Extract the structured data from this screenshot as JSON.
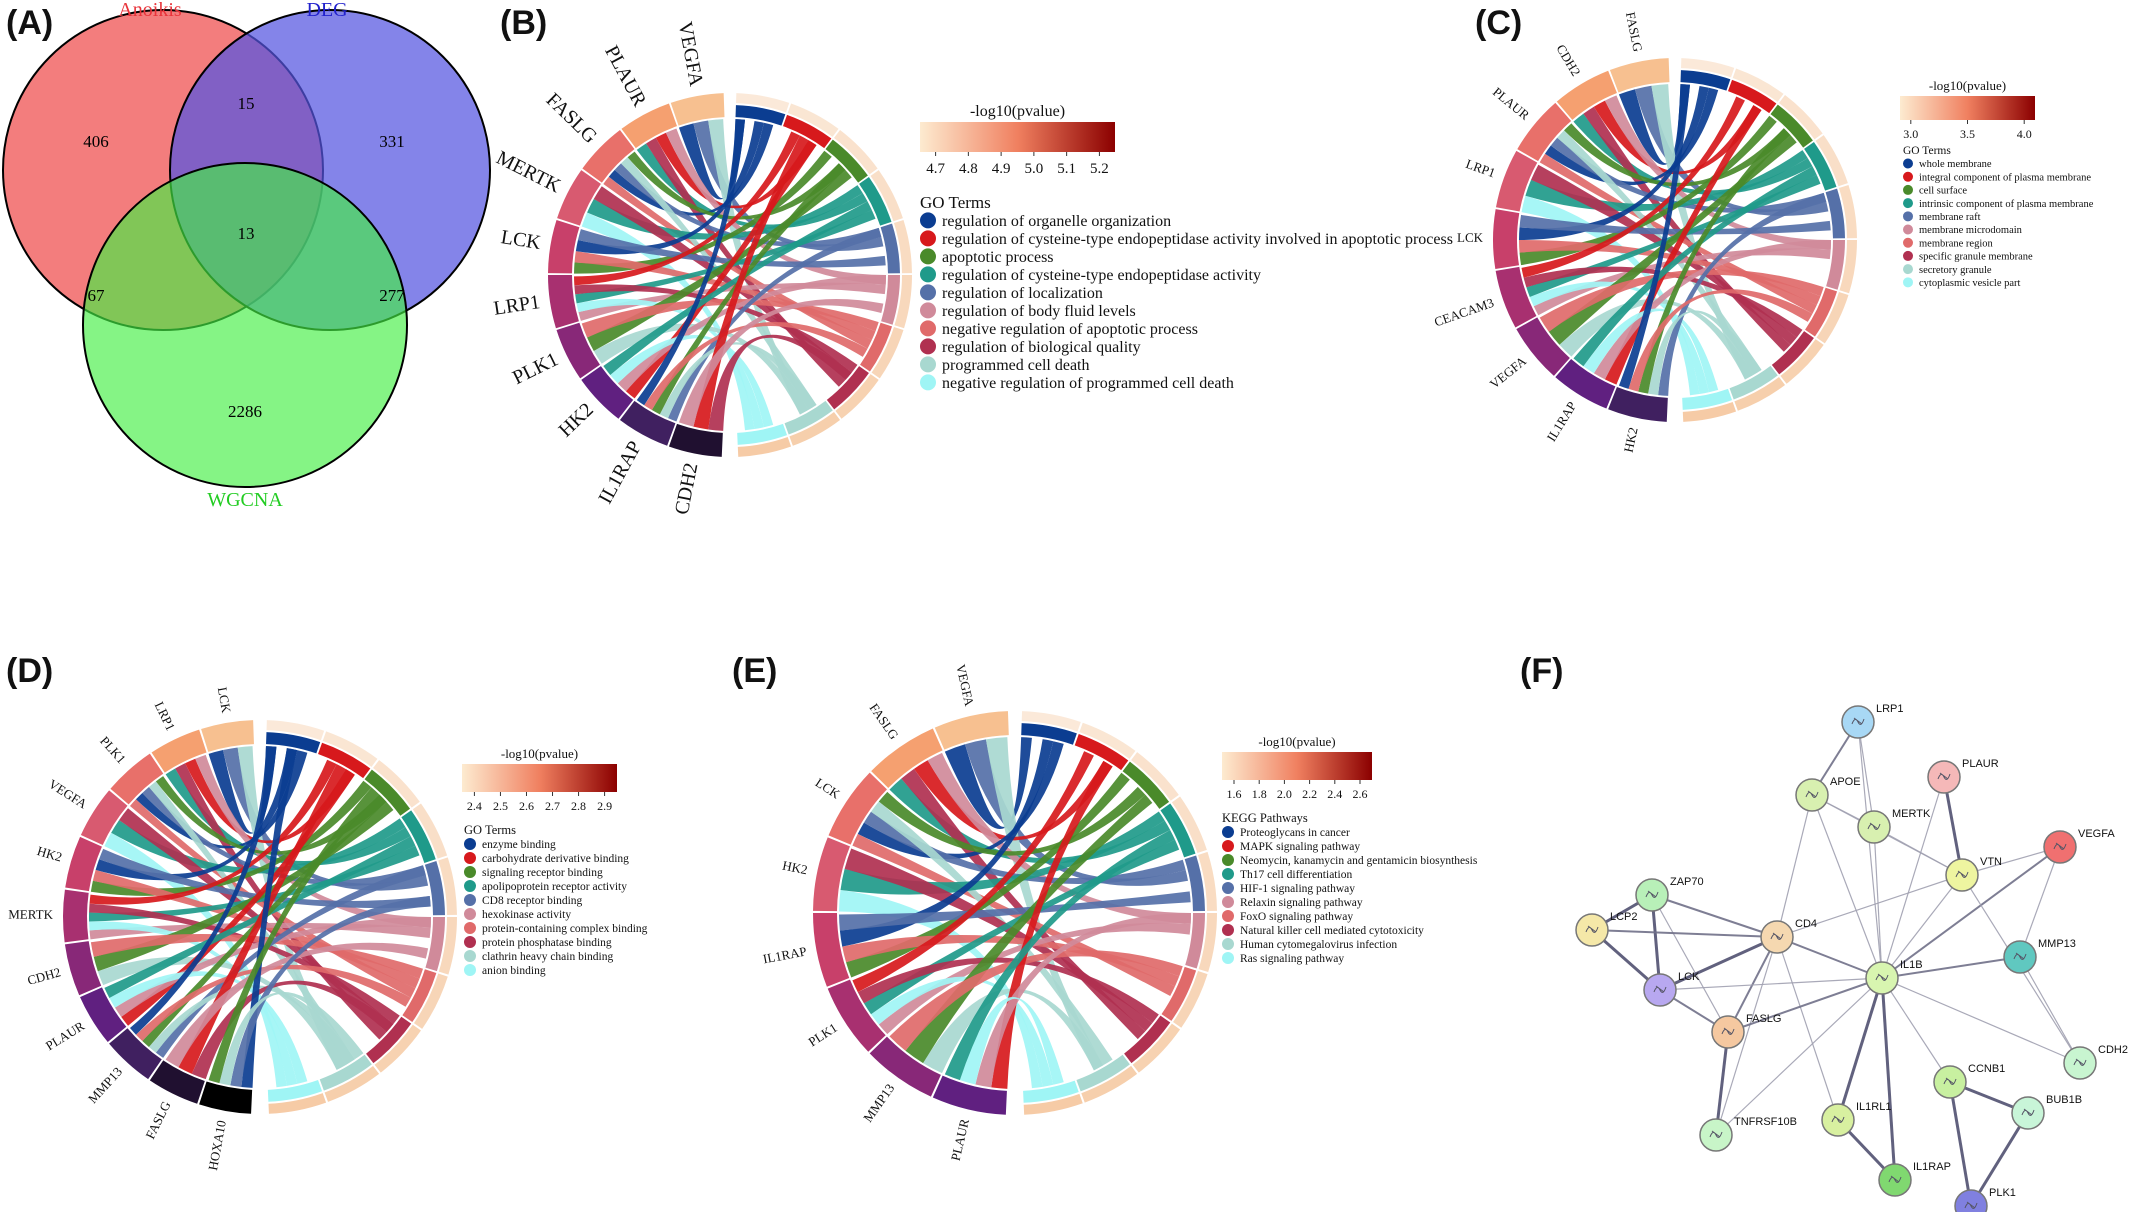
{
  "panels": [
    "(A)",
    "(B)",
    "(C)",
    "(D)",
    "(E)",
    "(F)"
  ],
  "venn": {
    "sets": [
      {
        "name": "Anoikis",
        "color": "#f06060",
        "label_color": "#e8333a"
      },
      {
        "name": "DEG",
        "color": "#5a5ae6",
        "label_color": "#2222cc"
      },
      {
        "name": "WGCNA",
        "color": "#45ee45",
        "label_color": "#22cc22"
      }
    ],
    "counts": {
      "anoikis_only": "406",
      "deg_only": "331",
      "wgcna_only": "2286",
      "anoikis_deg": "15",
      "anoikis_wgcna": "67",
      "deg_wgcna": "277",
      "all_three": "13"
    }
  },
  "chordB": {
    "genes": [
      "VEGFA",
      "PLAUR",
      "FASLG",
      "MERTK",
      "LCK",
      "LRP1",
      "PLK1",
      "HK2",
      "IL1RAP",
      "CDH2"
    ],
    "scale_title": "-log10(pvalue)",
    "scale_ticks": [
      "4.7",
      "4.8",
      "4.9",
      "5.0",
      "5.1",
      "5.2"
    ],
    "legend_title": "GO Terms",
    "terms": [
      "regulation of organelle organization",
      "regulation of cysteine-type endopeptidase activity involved in apoptotic process",
      "apoptotic process",
      "regulation of cysteine-type endopeptidase activity",
      "regulation of localization",
      "regulation of body fluid levels",
      "negative regulation of apoptotic process",
      "regulation of biological quality",
      "programmed cell death",
      "negative regulation of programmed cell death"
    ]
  },
  "chordC": {
    "genes": [
      "FASLG",
      "CDH2",
      "PLAUR",
      "LRP1",
      "LCK",
      "CEACAM3",
      "VEGFA",
      "IL1RAP",
      "HK2"
    ],
    "scale_title": "-log10(pvalue)",
    "scale_ticks": [
      "3.0",
      "3.5",
      "4.0"
    ],
    "legend_title": "GO Terms",
    "terms": [
      "whole membrane",
      "integral component of plasma membrane",
      "cell surface",
      "intrinsic component of plasma membrane",
      "membrane raft",
      "membrane microdomain",
      "membrane region",
      "specific granule membrane",
      "secretory granule",
      "cytoplasmic vesicle part"
    ]
  },
  "chordD": {
    "genes": [
      "LCK",
      "LRP1",
      "PLK1",
      "VEGFA",
      "HK2",
      "MERTK",
      "CDH2",
      "PLAUR",
      "MMP13",
      "FASLG",
      "HOXA10"
    ],
    "scale_title": "-log10(pvalue)",
    "scale_ticks": [
      "2.4",
      "2.5",
      "2.6",
      "2.7",
      "2.8",
      "2.9"
    ],
    "legend_title": "GO Terms",
    "terms": [
      "enzyme binding",
      "carbohydrate derivative binding",
      "signaling receptor binding",
      "apolipoprotein receptor activity",
      "CD8 receptor binding",
      "hexokinase activity",
      "protein-containing complex binding",
      "protein phosphatase binding",
      "clathrin heavy chain binding",
      "anion binding"
    ]
  },
  "chordE": {
    "genes": [
      "VEGFA",
      "FASLG",
      "LCK",
      "HK2",
      "IL1RAP",
      "PLK1",
      "MMP13",
      "PLAUR"
    ],
    "scale_title": "-log10(pvalue)",
    "scale_ticks": [
      "1.6",
      "1.8",
      "2.0",
      "2.2",
      "2.4",
      "2.6"
    ],
    "legend_title": "KEGG Pathways",
    "terms": [
      "Proteoglycans in cancer",
      "MAPK signaling pathway",
      "Neomycin, kanamycin and gentamicin biosynthesis",
      "Th17 cell differentiation",
      "HIF-1 signaling pathway",
      "Relaxin signaling pathway",
      "FoxO signaling pathway",
      "Natural killer cell mediated cytotoxicity",
      "Human cytomegalovirus infection",
      "Ras signaling pathway"
    ]
  },
  "term_colors": [
    "#0b3d91",
    "#d7191c",
    "#4a8a2a",
    "#1f9a8a",
    "#5570a8",
    "#d08a9a",
    "#e06a6a",
    "#b03050",
    "#a8d8d0",
    "#9ff5f5"
  ],
  "network": {
    "nodes": [
      {
        "id": "LRP1",
        "color": "#a8d8f5"
      },
      {
        "id": "PLAUR",
        "color": "#f5b8b8"
      },
      {
        "id": "APOE",
        "color": "#d8f0b0"
      },
      {
        "id": "MERTK",
        "color": "#d8f0b0"
      },
      {
        "id": "VEGFA",
        "color": "#f07070"
      },
      {
        "id": "VTN",
        "color": "#eef5a0"
      },
      {
        "id": "ZAP70",
        "color": "#b8f0b8"
      },
      {
        "id": "LCP2",
        "color": "#f5e8a8"
      },
      {
        "id": "CD4",
        "color": "#f5d8b0"
      },
      {
        "id": "LCK",
        "color": "#b8a8f0"
      },
      {
        "id": "IL1B",
        "color": "#d8f5b0"
      },
      {
        "id": "MMP13",
        "color": "#60c8c0"
      },
      {
        "id": "FASLG",
        "color": "#f5c8a0"
      },
      {
        "id": "CDH2",
        "color": "#c8f5d0"
      },
      {
        "id": "CCNB1",
        "color": "#c8f0a0"
      },
      {
        "id": "BUB1B",
        "color": "#c8f5d8"
      },
      {
        "id": "IL1RL1",
        "color": "#d8f0a0"
      },
      {
        "id": "TNFRSF10B",
        "color": "#c8f5c8"
      },
      {
        "id": "IL1RAP",
        "color": "#80d870"
      },
      {
        "id": "PLK1",
        "color": "#8080e0"
      }
    ]
  }
}
